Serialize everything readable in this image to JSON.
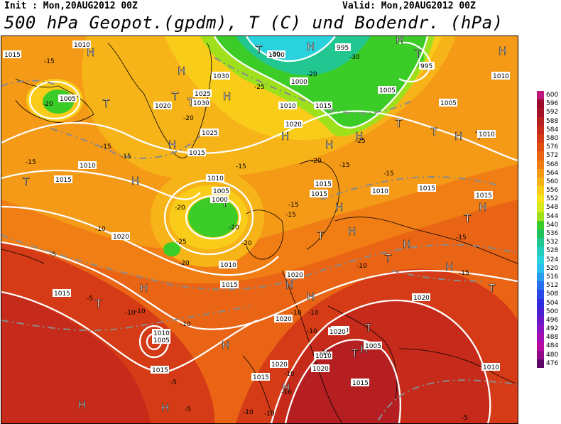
{
  "header": {
    "init": "Init : Mon,20AUG2012 00Z",
    "valid": "Valid: Mon,20AUG2012 00Z",
    "title": "500 hPa Geopot.(gpdm), T (C) und Bodendr. (hPa)"
  },
  "legend": [
    {
      "label": "600",
      "color": "#c0187a"
    },
    {
      "label": "596",
      "color": "#9a0c2a"
    },
    {
      "label": "592",
      "color": "#a41228"
    },
    {
      "label": "588",
      "color": "#b51f22"
    },
    {
      "label": "584",
      "color": "#c62a1a"
    },
    {
      "label": "580",
      "color": "#d43b16"
    },
    {
      "label": "576",
      "color": "#e04f12"
    },
    {
      "label": "572",
      "color": "#e96414"
    },
    {
      "label": "568",
      "color": "#f07e14"
    },
    {
      "label": "564",
      "color": "#f49a16"
    },
    {
      "label": "560",
      "color": "#f7b418"
    },
    {
      "label": "556",
      "color": "#f9cc1a"
    },
    {
      "label": "552",
      "color": "#f6e41c"
    },
    {
      "label": "548",
      "color": "#d6ea1c"
    },
    {
      "label": "544",
      "color": "#9ee01c"
    },
    {
      "label": "540",
      "color": "#3ccc28"
    },
    {
      "label": "536",
      "color": "#20c05a"
    },
    {
      "label": "532",
      "color": "#22c690"
    },
    {
      "label": "528",
      "color": "#24cdbc"
    },
    {
      "label": "524",
      "color": "#2ad2de"
    },
    {
      "label": "520",
      "color": "#2cc0ee"
    },
    {
      "label": "516",
      "color": "#2a9cf0"
    },
    {
      "label": "512",
      "color": "#2870ee"
    },
    {
      "label": "508",
      "color": "#2848e6"
    },
    {
      "label": "504",
      "color": "#2e2cdc"
    },
    {
      "label": "500",
      "color": "#4a20d2"
    },
    {
      "label": "496",
      "color": "#6a18c8"
    },
    {
      "label": "492",
      "color": "#8a14c0"
    },
    {
      "label": "488",
      "color": "#a210b4"
    },
    {
      "label": "484",
      "color": "#b60ca4"
    },
    {
      "label": "480",
      "color": "#8e0a8a"
    },
    {
      "label": "476",
      "color": "#5e066a"
    }
  ],
  "centers": {
    "highs": [
      "H",
      "H",
      "H",
      "H",
      "H",
      "H",
      "H",
      "H",
      "H",
      "H",
      "H",
      "H",
      "H",
      "H",
      "H",
      "H",
      "H",
      "H",
      "H",
      "H",
      "H",
      "H",
      "H",
      "H",
      "H"
    ],
    "lows": [
      "T",
      "T",
      "T",
      "T",
      "T",
      "T",
      "T",
      "T",
      "T",
      "T",
      "T",
      "T",
      "T",
      "T",
      "T",
      "T",
      "T"
    ]
  },
  "isobars": [
    "1015",
    "1010",
    "995",
    "1030",
    "1025",
    "1030",
    "1005",
    "1000",
    "1005",
    "1000",
    "1005",
    "995",
    "1020",
    "1010",
    "1015",
    "1020",
    "1025",
    "1015",
    "1010",
    "1015",
    "1010",
    "1005",
    "1000",
    "1015",
    "1020",
    "1015",
    "1010",
    "1015",
    "1020",
    "1020",
    "1010",
    "1015",
    "1020",
    "1010",
    "1015",
    "1015",
    "1020",
    "1010",
    "1005",
    "1015",
    "1015",
    "1020",
    "1020",
    "1010",
    "1020",
    "1015",
    "1010",
    "1010",
    "1005"
  ],
  "temps": [
    "-15",
    "-20",
    "-25",
    "-30",
    "-30",
    "-20",
    "-25",
    "-20",
    "-15",
    "-15",
    "-15",
    "-20",
    "-20",
    "-25",
    "-20",
    "-15",
    "-15",
    "-20",
    "-20",
    "-10",
    "-15",
    "-10",
    "-5",
    "-5",
    "-10",
    "-10",
    "-15",
    "-10",
    "-10",
    "-10",
    "-10",
    "-15",
    "-10",
    "-10",
    "-5",
    "-5",
    "-10",
    "-10",
    "-5",
    "-10",
    "-15",
    "-15"
  ]
}
